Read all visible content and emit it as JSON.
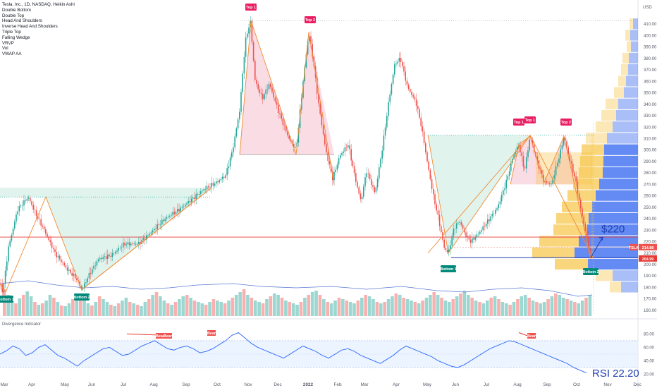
{
  "header": {
    "symbol_line": "Tesla, Inc., 1D, NASDAQ, Heikin Ashi",
    "indicators": [
      "Double Bottom",
      "Double Top",
      "Head And Shoulders",
      "Inverse Head And Shoulders",
      "Triple Top",
      "Falling Wedge",
      "VRVP",
      "Vol",
      "VWAP AA"
    ]
  },
  "currency": "USD",
  "ticker_tag": "TSLA",
  "price_tags": [
    "214.88",
    "204.99"
  ],
  "rsi_panel_title": "Divergence Indicator",
  "bear_tag": "Bear",
  "annotations": {
    "target": "$220",
    "rsi": "RSI 22.20"
  },
  "pattern_labels": [
    {
      "text": "Top 1",
      "kind": "top"
    },
    {
      "text": "Top 2",
      "kind": "top"
    },
    {
      "text": "Top 1",
      "kind": "top"
    },
    {
      "text": "Top 1",
      "kind": "top"
    },
    {
      "text": "Top 2",
      "kind": "top"
    },
    {
      "text": "Bottom 1",
      "kind": "bottom"
    },
    {
      "text": "Bottom 2",
      "kind": "bottom"
    },
    {
      "text": "Bottom 1",
      "kind": "bottom"
    },
    {
      "text": "Bottom 2",
      "kind": "bottom"
    }
  ],
  "colors": {
    "up": "#26a69a",
    "down": "#ef5350",
    "top_label": "#e91e63",
    "bottom_label": "#00897b",
    "pattern_line": "#f28b30",
    "target_line": "#1f3fb0",
    "rsi_line": "#2962ff",
    "support_line": "#e53935"
  },
  "chart_data": {
    "type": "candlestick",
    "price_axis": {
      "ticks": [
        160,
        170,
        180,
        190,
        200,
        210,
        220,
        230,
        240,
        250,
        260,
        270,
        280,
        290,
        300,
        310,
        320,
        330,
        340,
        350,
        360,
        370,
        380,
        390,
        400,
        410
      ],
      "range": [
        155,
        420
      ]
    },
    "x_ticks": [
      "Mar",
      "Apr",
      "May",
      "Jun",
      "Jul",
      "Aug",
      "Sep",
      "Oct",
      "Nov",
      "Dec",
      "2022",
      "Feb",
      "Mar",
      "Apr",
      "May",
      "Jun",
      "Jul",
      "Aug",
      "Sep",
      "Oct",
      "Nov",
      "Dec"
    ],
    "price_path": [
      [
        0,
        183
      ],
      [
        4,
        176
      ],
      [
        12,
        215
      ],
      [
        25,
        248
      ],
      [
        40,
        259
      ],
      [
        50,
        245
      ],
      [
        62,
        231
      ],
      [
        78,
        210
      ],
      [
        95,
        196
      ],
      [
        108,
        188
      ],
      [
        116,
        178
      ],
      [
        128,
        193
      ],
      [
        140,
        205
      ],
      [
        158,
        208
      ],
      [
        176,
        218
      ],
      [
        196,
        218
      ],
      [
        214,
        228
      ],
      [
        234,
        240
      ],
      [
        254,
        248
      ],
      [
        272,
        257
      ],
      [
        290,
        266
      ],
      [
        308,
        272
      ],
      [
        320,
        278
      ],
      [
        330,
        300
      ],
      [
        340,
        335
      ],
      [
        348,
        395
      ],
      [
        355,
        413
      ],
      [
        362,
        360
      ],
      [
        372,
        345
      ],
      [
        382,
        358
      ],
      [
        396,
        332
      ],
      [
        410,
        310
      ],
      [
        420,
        300
      ],
      [
        430,
        360
      ],
      [
        438,
        403
      ],
      [
        444,
        380
      ],
      [
        452,
        340
      ],
      [
        462,
        300
      ],
      [
        472,
        275
      ],
      [
        482,
        295
      ],
      [
        494,
        305
      ],
      [
        504,
        275
      ],
      [
        512,
        255
      ],
      [
        520,
        282
      ],
      [
        532,
        262
      ],
      [
        542,
        300
      ],
      [
        552,
        345
      ],
      [
        560,
        375
      ],
      [
        568,
        380
      ],
      [
        578,
        355
      ],
      [
        590,
        342
      ],
      [
        598,
        320
      ],
      [
        606,
        290
      ],
      [
        614,
        262
      ],
      [
        622,
        240
      ],
      [
        630,
        215
      ],
      [
        636,
        210
      ],
      [
        644,
        232
      ],
      [
        652,
        238
      ],
      [
        660,
        226
      ],
      [
        668,
        220
      ],
      [
        680,
        228
      ],
      [
        692,
        238
      ],
      [
        706,
        250
      ],
      [
        718,
        272
      ],
      [
        728,
        295
      ],
      [
        736,
        305
      ],
      [
        744,
        282
      ],
      [
        752,
        312
      ],
      [
        762,
        290
      ],
      [
        772,
        272
      ],
      [
        782,
        270
      ],
      [
        794,
        296
      ],
      [
        800,
        312
      ],
      [
        808,
        292
      ],
      [
        816,
        275
      ],
      [
        824,
        248
      ],
      [
        832,
        225
      ],
      [
        838,
        205
      ]
    ],
    "patterns": [
      {
        "name": "Double Bottom",
        "x": [
          [
            0,
            183
          ],
          [
            8,
            176
          ],
          [
            65,
            259
          ],
          [
            116,
            178
          ],
          [
            300,
            267
          ]
        ],
        "neckline": 259
      },
      {
        "name": "Double Top",
        "x": [
          [
            340,
            296
          ],
          [
            356,
            413
          ],
          [
            420,
            296
          ],
          [
            438,
            403
          ],
          [
            474,
            270
          ]
        ],
        "neckline": 296
      },
      {
        "name": "Double Bottom",
        "x": [
          [
            607,
            313
          ],
          [
            636,
            210
          ],
          [
            752,
            313
          ],
          [
            842,
            205
          ]
        ],
        "neckline": 313
      },
      {
        "name": "Triple Top",
        "x": [
          [
            724,
            270
          ],
          [
            736,
            305
          ],
          [
            752,
            312
          ],
          [
            772,
            272
          ],
          [
            800,
            312
          ],
          [
            838,
            205
          ]
        ],
        "neckline": 270
      }
    ],
    "support_levels": [
      224,
      214.88,
      204.99
    ],
    "target": {
      "from": [
        838,
        206
      ],
      "to": [
        855,
        224
      ],
      "label": "$220"
    },
    "volume_values": [
      38,
      30,
      22,
      18,
      25,
      30,
      35,
      28,
      20,
      16,
      18,
      22,
      30,
      26,
      20,
      15,
      14,
      18,
      24,
      30,
      26,
      22,
      18,
      15,
      20,
      28,
      24,
      20,
      16,
      14,
      18,
      22,
      26,
      20,
      18,
      16,
      14,
      20,
      24,
      30,
      34,
      28,
      22,
      18,
      16,
      20,
      24,
      28,
      30,
      26,
      22,
      20,
      18,
      16,
      20,
      24,
      22,
      20,
      18,
      22,
      26,
      30,
      34,
      38,
      30,
      26,
      22,
      20,
      18,
      24,
      28,
      32,
      30,
      26,
      22,
      20,
      18,
      16,
      20,
      26,
      30,
      34,
      36,
      30,
      24,
      20,
      18,
      22,
      26,
      24,
      22,
      20,
      18,
      22,
      26,
      30,
      28,
      24,
      20,
      18,
      20,
      24,
      28,
      32,
      30,
      26,
      24,
      22,
      20,
      18,
      22,
      26,
      30,
      34,
      30,
      26,
      22,
      20,
      24,
      28,
      32,
      36,
      30,
      26,
      22,
      20,
      18,
      22,
      26,
      28,
      24,
      20,
      18,
      16,
      20,
      24,
      28,
      30,
      26,
      22,
      20,
      18,
      20,
      24,
      28,
      32,
      30,
      26,
      24,
      22,
      20,
      18,
      22,
      26,
      30
    ],
    "vrvp": {
      "levels": [
        {
          "p": 410,
          "w": 12,
          "a": 0.55
        },
        {
          "p": 400,
          "w": 18,
          "a": 0.55
        },
        {
          "p": 390,
          "w": 16,
          "a": 0.55
        },
        {
          "p": 380,
          "w": 22,
          "a": 0.55
        },
        {
          "p": 370,
          "w": 24,
          "a": 0.55
        },
        {
          "p": 360,
          "w": 28,
          "a": 0.55
        },
        {
          "p": 350,
          "w": 34,
          "a": 0.55
        },
        {
          "p": 340,
          "w": 46,
          "a": 0.55
        },
        {
          "p": 330,
          "w": 52,
          "a": 0.55
        },
        {
          "p": 320,
          "w": 60,
          "a": 0.55
        },
        {
          "p": 310,
          "w": 74,
          "a": 0.55
        },
        {
          "p": 300,
          "w": 80,
          "a": 1
        },
        {
          "p": 290,
          "w": 82,
          "a": 1
        },
        {
          "p": 280,
          "w": 84,
          "a": 1
        },
        {
          "p": 270,
          "w": 92,
          "a": 1
        },
        {
          "p": 260,
          "w": 100,
          "a": 1
        },
        {
          "p": 250,
          "w": 108,
          "a": 1
        },
        {
          "p": 240,
          "w": 116,
          "a": 1
        },
        {
          "p": 230,
          "w": 120,
          "a": 1
        },
        {
          "p": 220,
          "w": 140,
          "a": 1
        },
        {
          "p": 210,
          "w": 150,
          "a": 1
        },
        {
          "p": 200,
          "w": 118,
          "a": 1
        },
        {
          "p": 190,
          "w": 60,
          "a": 0.55
        },
        {
          "p": 180,
          "w": 40,
          "a": 0.55
        }
      ]
    },
    "rsi": {
      "ticks": [
        20,
        40,
        60,
        80
      ],
      "range": [
        10,
        92
      ],
      "values": [
        50,
        55,
        62,
        58,
        48,
        52,
        60,
        64,
        56,
        48,
        44,
        38,
        32,
        40,
        46,
        52,
        58,
        60,
        54,
        48,
        50,
        56,
        62,
        66,
        70,
        64,
        58,
        56,
        60,
        62,
        58,
        52,
        54,
        58,
        64,
        70,
        78,
        82,
        74,
        66,
        60,
        56,
        52,
        48,
        44,
        50,
        56,
        62,
        58,
        54,
        48,
        44,
        50,
        56,
        58,
        54,
        48,
        44,
        40,
        36,
        42,
        48,
        56,
        62,
        58,
        54,
        50,
        46,
        40,
        36,
        32,
        30,
        34,
        40,
        46,
        52,
        58,
        62,
        66,
        70,
        68,
        64,
        60,
        56,
        52,
        48,
        44,
        40,
        36,
        30,
        26,
        22
      ]
    }
  }
}
